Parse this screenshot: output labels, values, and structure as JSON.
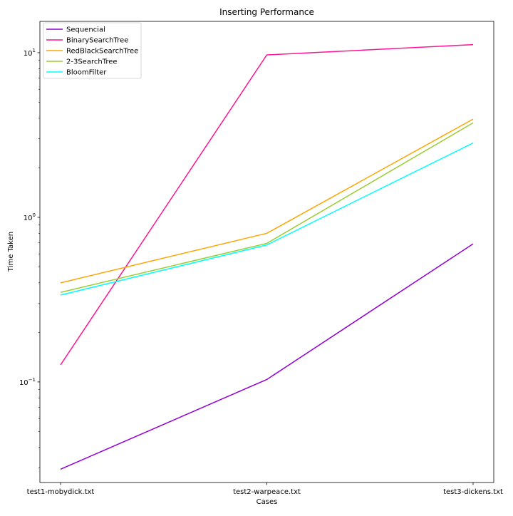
{
  "chart_data": {
    "type": "line",
    "title": "Inserting Performance",
    "xlabel": "Cases",
    "ylabel": "Time Taken",
    "categories": [
      "test1-mobydick.txt",
      "test2-warpeace.txt",
      "test3-dickens.txt"
    ],
    "y_scale": "log",
    "ylim": [
      0.0245,
      15.5
    ],
    "y_ticks": [
      {
        "value": 0.1,
        "base": "10",
        "exp": "−1"
      },
      {
        "value": 1,
        "base": "10",
        "exp": "0"
      },
      {
        "value": 10,
        "base": "10",
        "exp": "1"
      }
    ],
    "grid": false,
    "legend_position": "top-left",
    "series": [
      {
        "name": "Sequencial",
        "color": "#9400d3",
        "values": [
          0.0295,
          0.1035,
          0.69
        ]
      },
      {
        "name": "BinarySearchTree",
        "color": "#ff1493",
        "values": [
          0.127,
          9.7,
          11.2
        ]
      },
      {
        "name": "RedBlackSearchTree",
        "color": "#ffa500",
        "values": [
          0.4,
          0.8,
          3.95
        ]
      },
      {
        "name": "2-3SearchTree",
        "color": "#9acd32",
        "values": [
          0.35,
          0.695,
          3.75
        ]
      },
      {
        "name": "BloomFilter",
        "color": "#00ffff",
        "values": [
          0.337,
          0.68,
          2.83
        ]
      }
    ]
  }
}
